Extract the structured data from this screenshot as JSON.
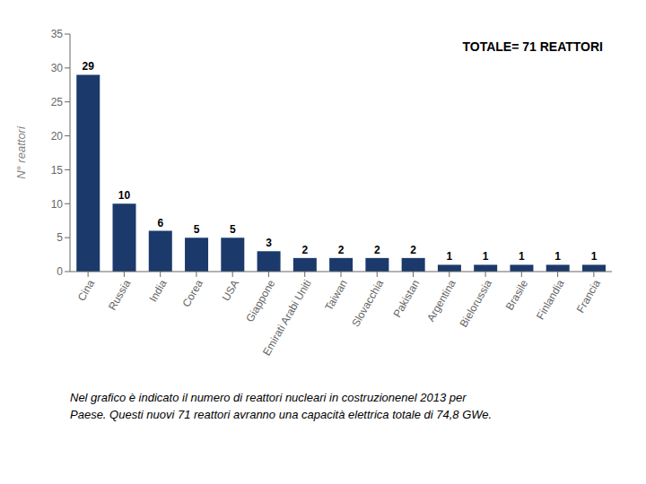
{
  "chart_data": {
    "type": "bar",
    "categories": [
      "Cina",
      "Russia",
      "India",
      "Corea",
      "USA",
      "Giappone",
      "Emirati Arabi Uniti",
      "Taiwan",
      "Slovacchia",
      "Pakistan",
      "Argentina",
      "Bielorussia",
      "Brasile",
      "Finlandia",
      "Francia"
    ],
    "values": [
      29,
      10,
      6,
      5,
      5,
      3,
      2,
      2,
      2,
      2,
      1,
      1,
      1,
      1,
      1
    ],
    "color": "#1B3A6B",
    "ylabel": "N° reattori",
    "ylim": [
      0,
      35
    ],
    "yticks": [
      0,
      5,
      10,
      15,
      20,
      25,
      30,
      35
    ],
    "grid": false,
    "data_labels": true,
    "annotation": "TOTALE= 71 REATTORI",
    "caption": [
      "Nel grafico è indicato il numero di reattori nucleari in costruzionenel 2013 per",
      "Paese. Questi nuovi 71 reattori avranno una capacità elettrica totale di 74,8 GWe."
    ]
  }
}
